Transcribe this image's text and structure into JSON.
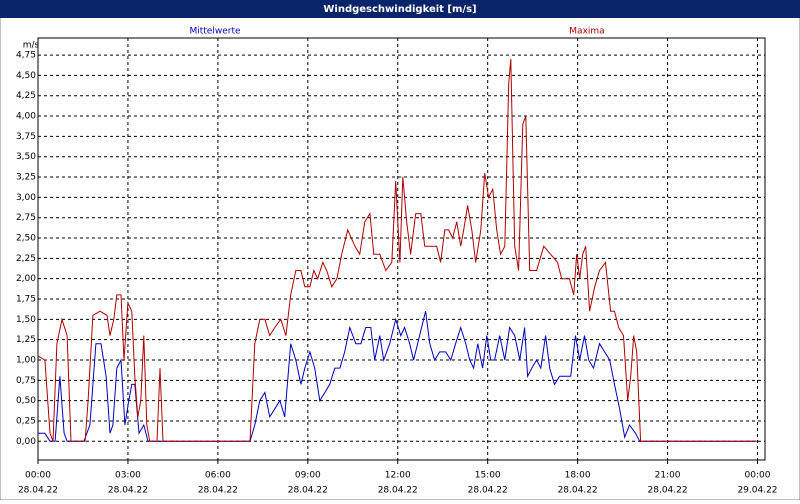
{
  "chart_data": {
    "type": "line",
    "title": "Windgeschwindigkeit [m/s]",
    "y_unit": "m/s",
    "xlim": [
      0,
      24.25
    ],
    "ylim": [
      -0.23,
      4.96
    ],
    "grid": true,
    "xticks": [
      {
        "value": 0,
        "label": "00:00"
      },
      {
        "value": 3,
        "label": "03:00"
      },
      {
        "value": 6,
        "label": "06:00"
      },
      {
        "value": 9,
        "label": "09:00"
      },
      {
        "value": 12,
        "label": "12:00"
      },
      {
        "value": 15,
        "label": "15:00"
      },
      {
        "value": 18,
        "label": "18:00"
      },
      {
        "value": 21,
        "label": "21:00"
      },
      {
        "value": 24,
        "label": "00:00"
      }
    ],
    "xtick_dates": [
      "28.04.22",
      "28.04.22",
      "28.04.22",
      "28.04.22",
      "28.04.22",
      "28.04.22",
      "28.04.22",
      "28.04.22",
      "29.04.22"
    ],
    "yticks": [
      {
        "value": 0,
        "label": "0,00"
      },
      {
        "value": 0.25,
        "label": "0,25"
      },
      {
        "value": 0.5,
        "label": "0,50"
      },
      {
        "value": 0.75,
        "label": "0,75"
      },
      {
        "value": 1,
        "label": "1,00"
      },
      {
        "value": 1.25,
        "label": "1,25"
      },
      {
        "value": 1.5,
        "label": "1,50"
      },
      {
        "value": 1.75,
        "label": "1,75"
      },
      {
        "value": 2,
        "label": "2,00"
      },
      {
        "value": 2.25,
        "label": "2,25"
      },
      {
        "value": 2.5,
        "label": "2,50"
      },
      {
        "value": 2.75,
        "label": "2,75"
      },
      {
        "value": 3,
        "label": "3,00"
      },
      {
        "value": 3.25,
        "label": "3,25"
      },
      {
        "value": 3.5,
        "label": "3,50"
      },
      {
        "value": 3.75,
        "label": "3,75"
      },
      {
        "value": 4,
        "label": "4,00"
      },
      {
        "value": 4.25,
        "label": "4,25"
      },
      {
        "value": 4.5,
        "label": "4,50"
      },
      {
        "value": 4.75,
        "label": "4,75"
      }
    ],
    "series": [
      {
        "name": "Mittelwerte",
        "color": "#0000c0",
        "x": [
          0,
          0.23,
          0.4,
          0.57,
          0.73,
          0.87,
          0.97,
          1.53,
          1.73,
          1.93,
          2.1,
          2.27,
          2.4,
          2.5,
          2.63,
          2.77,
          2.9,
          3.03,
          3.13,
          3.23,
          3.37,
          3.53,
          3.67,
          7.07,
          7.23,
          7.4,
          7.57,
          7.73,
          7.9,
          8.07,
          8.23,
          8.43,
          8.6,
          8.77,
          8.9,
          9.07,
          9.23,
          9.4,
          9.57,
          9.73,
          9.9,
          10.07,
          10.23,
          10.4,
          10.6,
          10.77,
          10.93,
          11.1,
          11.23,
          11.4,
          11.53,
          11.73,
          11.93,
          12.1,
          12.23,
          12.4,
          12.53,
          12.73,
          12.93,
          13.07,
          13.23,
          13.4,
          13.6,
          13.77,
          13.93,
          14.1,
          14.27,
          14.4,
          14.53,
          14.67,
          14.83,
          14.97,
          15.1,
          15.23,
          15.4,
          15.57,
          15.73,
          15.9,
          16.07,
          16.23,
          16.33,
          16.47,
          16.63,
          16.77,
          16.93,
          17.07,
          17.23,
          17.4,
          17.57,
          17.77,
          17.93,
          18.07,
          18.23,
          18.37,
          18.53,
          18.73,
          18.9,
          19.07,
          19.23,
          19.4,
          19.57,
          19.73,
          19.93,
          20.07,
          23.97
        ],
        "values": [
          0.1,
          0.1,
          0,
          0,
          0.8,
          0.1,
          0,
          0,
          0.2,
          1.2,
          1.2,
          0.8,
          0.1,
          0.2,
          0.9,
          1.0,
          0.2,
          0.5,
          0.7,
          0.7,
          0.1,
          0.2,
          0,
          0,
          0.2,
          0.5,
          0.6,
          0.3,
          0.4,
          0.5,
          0.3,
          1.2,
          1.0,
          0.7,
          0.9,
          1.1,
          0.9,
          0.5,
          0.6,
          0.7,
          0.9,
          0.9,
          1.1,
          1.4,
          1.2,
          1.2,
          1.4,
          1.4,
          1.0,
          1.3,
          1.0,
          1.2,
          1.5,
          1.3,
          1.4,
          1.2,
          1.0,
          1.3,
          1.6,
          1.2,
          1.0,
          1.1,
          1.1,
          1.0,
          1.2,
          1.4,
          1.2,
          1.0,
          0.9,
          1.2,
          0.9,
          1.3,
          1.0,
          1.0,
          1.3,
          1.0,
          1.4,
          1.3,
          1.0,
          1.4,
          0.8,
          0.9,
          1.0,
          0.9,
          1.3,
          0.9,
          0.7,
          0.8,
          0.8,
          0.8,
          1.3,
          1.0,
          1.3,
          1.0,
          0.9,
          1.2,
          1.1,
          1.0,
          0.7,
          0.4,
          0.05,
          0.2,
          0.1,
          0,
          0
        ]
      },
      {
        "name": "Maxima",
        "color": "#b00000",
        "x": [
          0,
          0.23,
          0.4,
          0.5,
          0.63,
          0.8,
          0.97,
          1.1,
          1.57,
          1.67,
          1.83,
          2.07,
          2.3,
          2.4,
          2.53,
          2.63,
          2.77,
          2.87,
          3.0,
          3.13,
          3.23,
          3.33,
          3.43,
          3.53,
          3.63,
          3.73,
          3.97,
          4.07,
          4.17,
          7.07,
          7.23,
          7.4,
          7.57,
          7.73,
          7.9,
          8.1,
          8.27,
          8.43,
          8.6,
          8.77,
          8.9,
          9.07,
          9.2,
          9.33,
          9.5,
          9.63,
          9.8,
          9.97,
          10.13,
          10.33,
          10.57,
          10.73,
          10.9,
          11.07,
          11.2,
          11.4,
          11.6,
          11.8,
          11.93,
          12.07,
          12.17,
          12.3,
          12.43,
          12.6,
          12.77,
          12.9,
          13.1,
          13.3,
          13.43,
          13.57,
          13.7,
          13.83,
          13.97,
          14.1,
          14.2,
          14.33,
          14.47,
          14.6,
          14.77,
          14.9,
          15.03,
          15.17,
          15.3,
          15.43,
          15.57,
          15.7,
          15.77,
          15.9,
          16.03,
          16.17,
          16.27,
          16.4,
          16.63,
          16.87,
          17.1,
          17.33,
          17.47,
          17.73,
          17.87,
          17.97,
          18.07,
          18.17,
          18.27,
          18.4,
          18.57,
          18.73,
          18.93,
          19.1,
          19.23,
          19.37,
          19.53,
          19.67,
          19.77,
          19.87,
          19.97,
          20.1,
          23.97
        ],
        "values": [
          1.05,
          1.0,
          0.1,
          0,
          1.2,
          1.5,
          1.3,
          0,
          0,
          0.5,
          1.55,
          1.6,
          1.55,
          1.3,
          1.5,
          1.8,
          1.8,
          1.0,
          1.7,
          1.6,
          0.8,
          0.3,
          0.5,
          1.3,
          0.2,
          0,
          0,
          0.9,
          0,
          0,
          1.2,
          1.5,
          1.5,
          1.3,
          1.4,
          1.5,
          1.3,
          1.8,
          2.1,
          2.1,
          1.9,
          1.9,
          2.1,
          2.0,
          2.2,
          2.1,
          1.9,
          2.0,
          2.3,
          2.6,
          2.4,
          2.3,
          2.7,
          2.8,
          2.3,
          2.3,
          2.1,
          2.2,
          3.2,
          2.2,
          3.25,
          2.7,
          2.3,
          2.8,
          2.8,
          2.4,
          2.4,
          2.4,
          2.2,
          2.6,
          2.6,
          2.5,
          2.7,
          2.4,
          2.6,
          2.9,
          2.6,
          2.2,
          2.6,
          3.3,
          3.0,
          3.1,
          2.6,
          2.3,
          2.4,
          4.4,
          4.7,
          2.4,
          2.1,
          3.9,
          4.0,
          2.1,
          2.1,
          2.4,
          2.3,
          2.2,
          2.0,
          2.0,
          1.8,
          2.3,
          2.0,
          2.3,
          2.4,
          1.6,
          1.9,
          2.1,
          2.2,
          1.6,
          1.6,
          1.4,
          1.3,
          0.5,
          0.8,
          1.3,
          1.1,
          0,
          0
        ]
      }
    ]
  }
}
